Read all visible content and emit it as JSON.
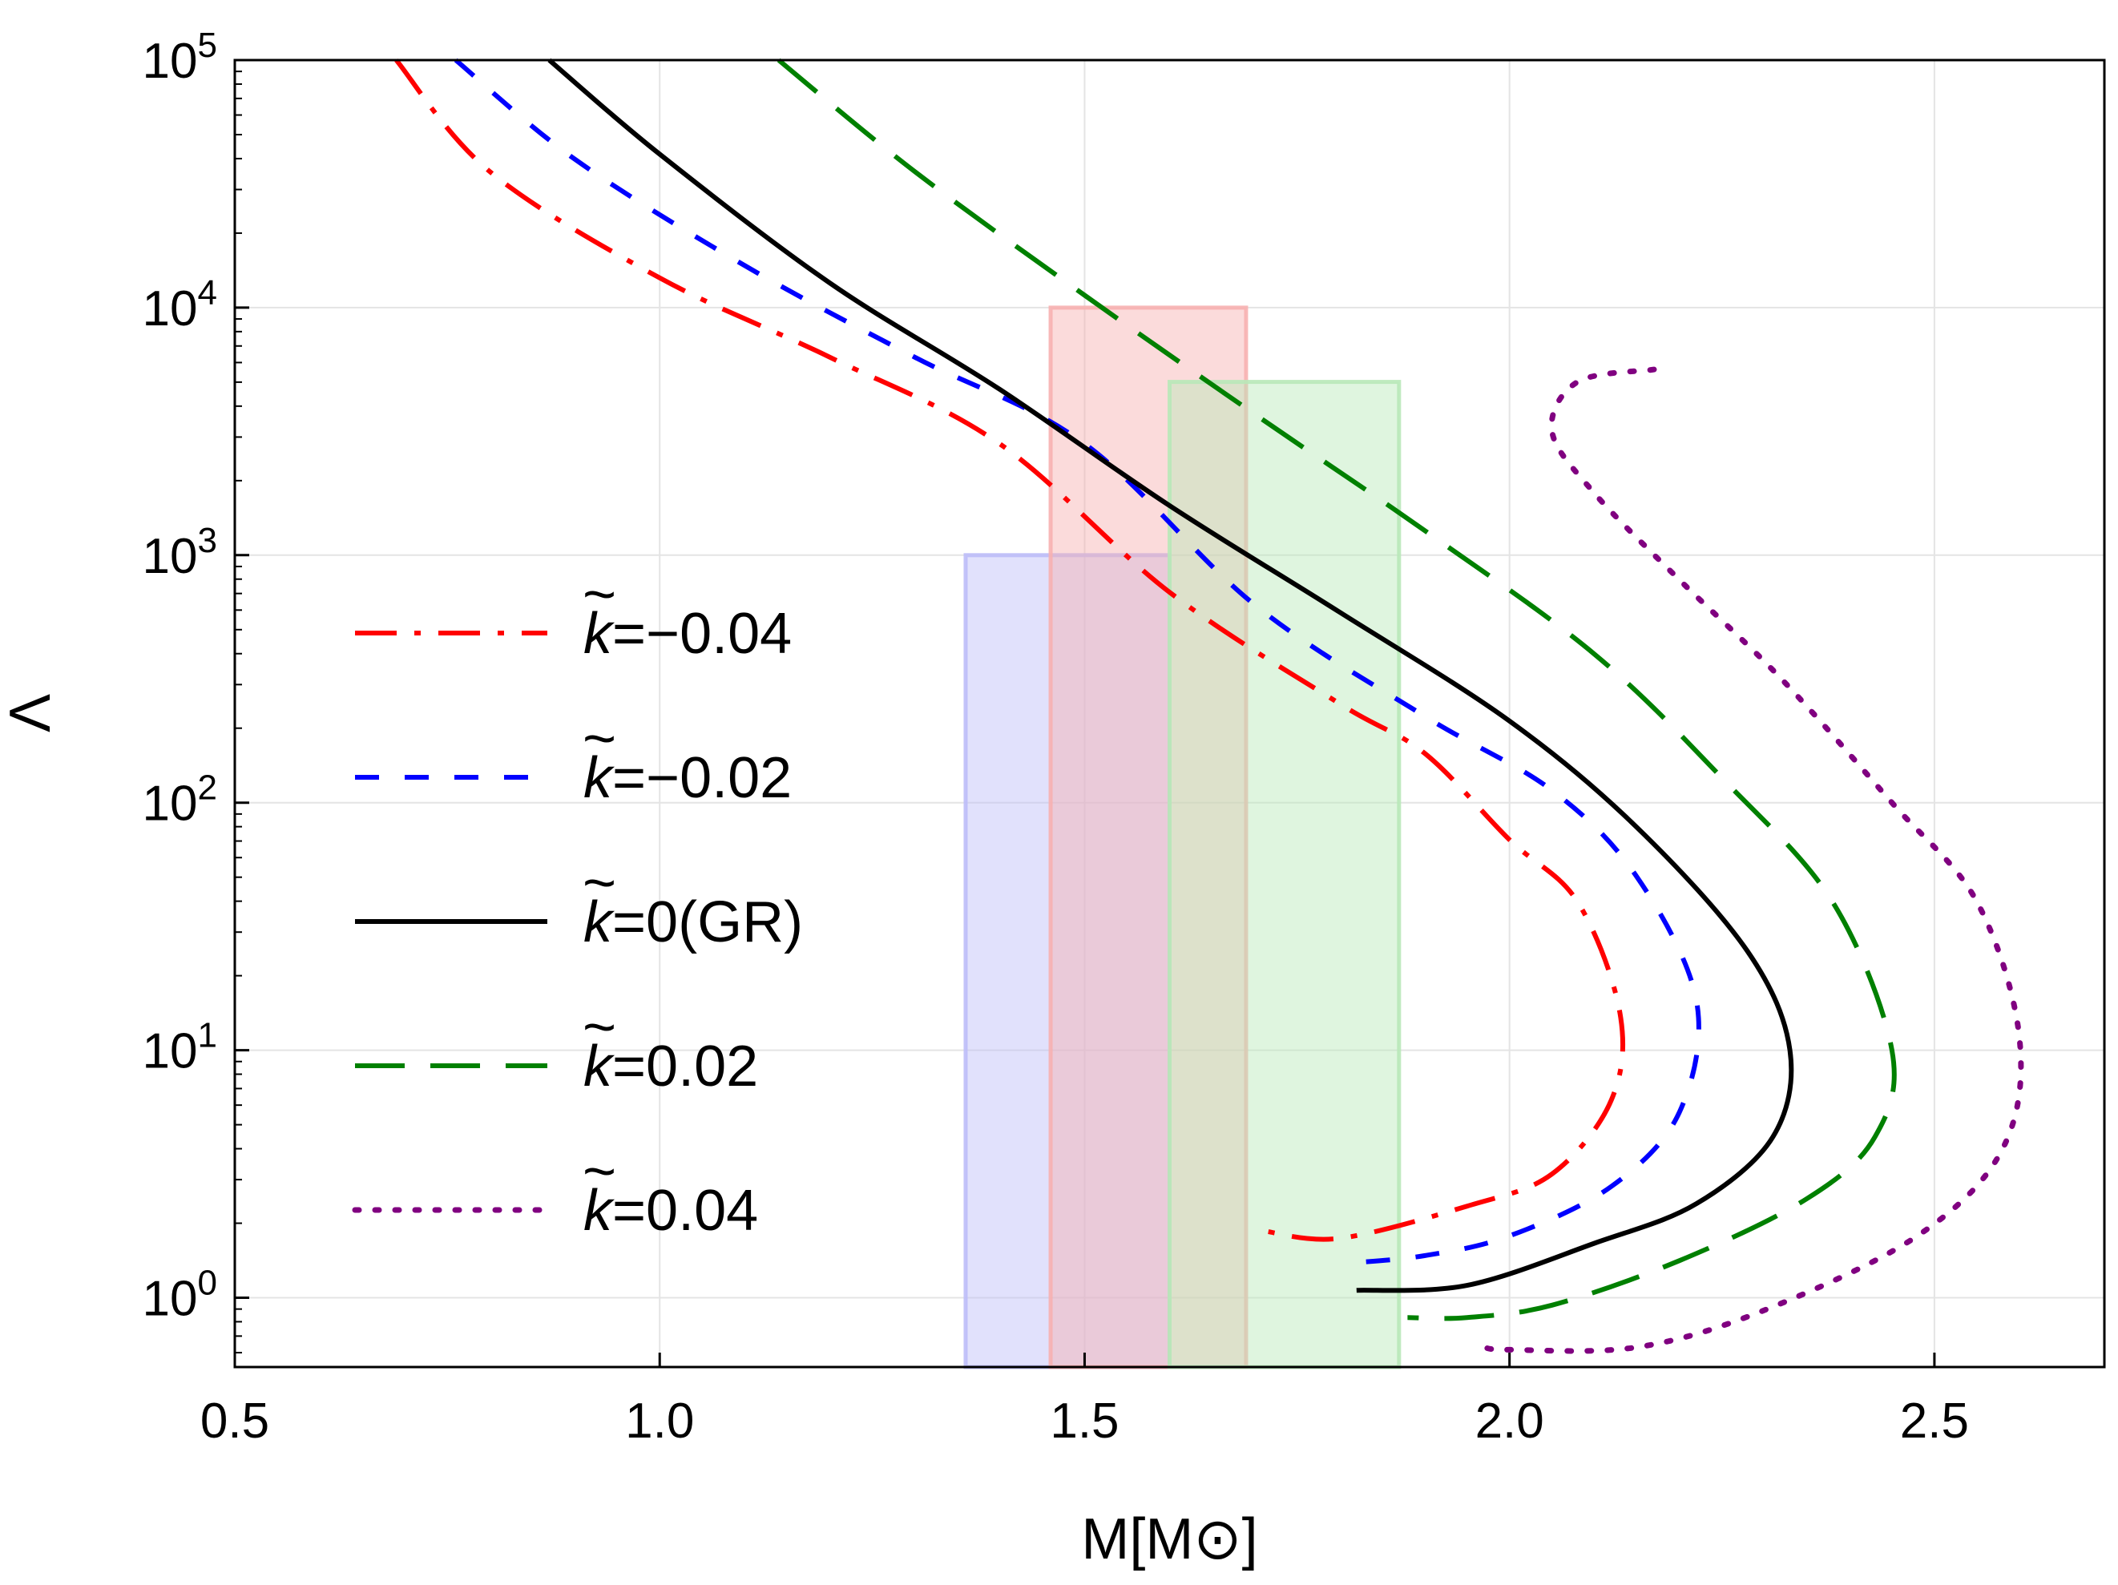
{
  "chart_data": {
    "type": "line",
    "title": "",
    "xlabel": "M[M⊙]",
    "ylabel": "Λ",
    "xlim": [
      0.5,
      2.7
    ],
    "ylim_log10": [
      -0.28,
      5
    ],
    "yscale": "log",
    "grid": true,
    "x_ticks": [
      {
        "value": 0.5,
        "label": "0.5"
      },
      {
        "value": 1.0,
        "label": "1.0"
      },
      {
        "value": 1.5,
        "label": "1.5"
      },
      {
        "value": 2.0,
        "label": "2.0"
      },
      {
        "value": 2.5,
        "label": "2.5"
      }
    ],
    "y_ticks": [
      {
        "exp": 0,
        "base": "10",
        "sup": "0"
      },
      {
        "exp": 1,
        "base": "10",
        "sup": "1"
      },
      {
        "exp": 2,
        "base": "10",
        "sup": "2"
      },
      {
        "exp": 3,
        "base": "10",
        "sup": "3"
      },
      {
        "exp": 4,
        "base": "10",
        "sup": "4"
      },
      {
        "exp": 5,
        "base": "10",
        "sup": "5"
      }
    ],
    "bands": [
      {
        "name": "blue-band",
        "x": [
          1.36,
          1.6
        ],
        "y_log10_top": 3.0,
        "color": "#bcbcf8",
        "opacity": 0.45
      },
      {
        "name": "red-band",
        "x": [
          1.46,
          1.69
        ],
        "y_log10_top": 4.0,
        "color": "#f7b0b0",
        "opacity": 0.45
      },
      {
        "name": "green-band",
        "x": [
          1.6,
          1.87
        ],
        "y_log10_top": 3.7,
        "color": "#b8e8b8",
        "opacity": 0.45
      }
    ],
    "series": [
      {
        "name": "k=-0.04",
        "legend_prefix": "k",
        "legend_value": "=−0.04",
        "color": "#ff0000",
        "dash": "52 22 8 22",
        "points": [
          [
            0.69,
            5.0
          ],
          [
            0.8,
            4.55
          ],
          [
            1.0,
            4.12
          ],
          [
            1.2,
            3.8
          ],
          [
            1.4,
            3.45
          ],
          [
            1.6,
            2.85
          ],
          [
            1.8,
            2.4
          ],
          [
            1.9,
            2.2
          ],
          [
            2.0,
            1.85
          ],
          [
            2.08,
            1.6
          ],
          [
            2.13,
            1.15
          ],
          [
            2.12,
            0.8
          ],
          [
            2.05,
            0.5
          ],
          [
            1.95,
            0.37
          ],
          [
            1.8,
            0.24
          ],
          [
            1.71,
            0.27
          ]
        ]
      },
      {
        "name": "k=-0.02",
        "legend_prefix": "k",
        "legend_value": "=−0.02",
        "color": "#0000ff",
        "dash": "30 32",
        "points": [
          [
            0.76,
            5.0
          ],
          [
            0.9,
            4.6
          ],
          [
            1.1,
            4.17
          ],
          [
            1.3,
            3.8
          ],
          [
            1.5,
            3.45
          ],
          [
            1.7,
            2.8
          ],
          [
            1.9,
            2.35
          ],
          [
            2.05,
            2.05
          ],
          [
            2.15,
            1.7
          ],
          [
            2.22,
            1.2
          ],
          [
            2.2,
            0.75
          ],
          [
            2.12,
            0.45
          ],
          [
            2.0,
            0.25
          ],
          [
            1.9,
            0.17
          ],
          [
            1.81,
            0.14
          ]
        ]
      },
      {
        "name": "k=0(GR)",
        "legend_prefix": "k",
        "legend_value": "=0(GR)",
        "color": "#000000",
        "dash": "",
        "points": [
          [
            0.87,
            5.0
          ],
          [
            1.0,
            4.62
          ],
          [
            1.2,
            4.1
          ],
          [
            1.4,
            3.67
          ],
          [
            1.6,
            3.2
          ],
          [
            1.8,
            2.77
          ],
          [
            2.0,
            2.33
          ],
          [
            2.15,
            1.9
          ],
          [
            2.28,
            1.4
          ],
          [
            2.33,
            1.0
          ],
          [
            2.31,
            0.65
          ],
          [
            2.22,
            0.38
          ],
          [
            2.1,
            0.22
          ],
          [
            1.95,
            0.05
          ],
          [
            1.82,
            0.03
          ]
        ]
      },
      {
        "name": "k=0.02",
        "legend_prefix": "k",
        "legend_value": "=0.02",
        "color": "#008000",
        "dash": "62 32",
        "points": [
          [
            1.14,
            5.0
          ],
          [
            1.3,
            4.55
          ],
          [
            1.5,
            4.05
          ],
          [
            1.7,
            3.57
          ],
          [
            1.9,
            3.1
          ],
          [
            2.1,
            2.6
          ],
          [
            2.25,
            2.1
          ],
          [
            2.38,
            1.6
          ],
          [
            2.45,
            1.0
          ],
          [
            2.43,
            0.65
          ],
          [
            2.35,
            0.4
          ],
          [
            2.2,
            0.15
          ],
          [
            2.05,
            -0.03
          ],
          [
            1.95,
            -0.08
          ],
          [
            1.88,
            -0.08
          ]
        ]
      },
      {
        "name": "k=0.04",
        "legend_prefix": "k",
        "legend_value": "=0.04",
        "color": "#800080",
        "dash": "5 20",
        "points": [
          [
            2.17,
            3.75
          ],
          [
            2.08,
            3.7
          ],
          [
            2.05,
            3.5
          ],
          [
            2.1,
            3.25
          ],
          [
            2.2,
            2.9
          ],
          [
            2.32,
            2.5
          ],
          [
            2.45,
            2.0
          ],
          [
            2.55,
            1.6
          ],
          [
            2.6,
            1.05
          ],
          [
            2.58,
            0.6
          ],
          [
            2.48,
            0.25
          ],
          [
            2.3,
            -0.05
          ],
          [
            2.15,
            -0.2
          ],
          [
            2.0,
            -0.21
          ],
          [
            1.97,
            -0.2
          ]
        ]
      }
    ]
  }
}
